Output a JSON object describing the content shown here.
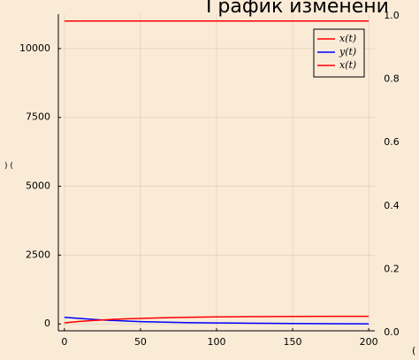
{
  "title": "График изменени",
  "left_axis_label": ") (",
  "bottom_cut_label": "(",
  "legend": [
    {
      "label": "x(t)",
      "color": "#ff0000"
    },
    {
      "label": "y(t)",
      "color": "#0000ff"
    },
    {
      "label": "x(t)",
      "color": "#ff0000"
    }
  ],
  "chart_data": {
    "type": "line",
    "title": "График изменени",
    "xlabel": "",
    "ylabel": "",
    "xlim": [
      -4,
      204
    ],
    "ylim": [
      -250,
      11250
    ],
    "x_ticks": [
      0,
      50,
      100,
      150,
      200
    ],
    "x_tick_labels": [
      "0",
      "50",
      "100",
      "150",
      "200"
    ],
    "y_ticks": [
      0,
      2500,
      5000,
      7500,
      10000
    ],
    "y_tick_labels": [
      "0",
      "2500",
      "5000",
      "7500",
      "10000"
    ],
    "right_axis": {
      "ticks": [
        0.0,
        0.2,
        0.4,
        0.6,
        0.8,
        1.0
      ],
      "tick_labels": [
        "0.0",
        "0.2",
        "0.4",
        "0.6",
        "0.8",
        "1.0"
      ]
    },
    "grid": true,
    "legend_position": "top-right",
    "series": [
      {
        "name": "x(t)",
        "color": "#ff0000",
        "x": [
          0,
          200
        ],
        "y": [
          11000,
          11000
        ]
      },
      {
        "name": "y(t)",
        "color": "#0000ff",
        "x": [
          0,
          10,
          20,
          30,
          40,
          50,
          60,
          80,
          100,
          120,
          150,
          200
        ],
        "y": [
          240,
          200,
          160,
          130,
          105,
          85,
          70,
          50,
          35,
          25,
          15,
          5
        ]
      },
      {
        "name": "x(t)",
        "color": "#ff0000",
        "x": [
          0,
          10,
          20,
          30,
          40,
          50,
          60,
          80,
          100,
          120,
          150,
          200
        ],
        "y": [
          40,
          90,
          130,
          160,
          185,
          200,
          215,
          240,
          255,
          265,
          272,
          278
        ]
      }
    ]
  }
}
